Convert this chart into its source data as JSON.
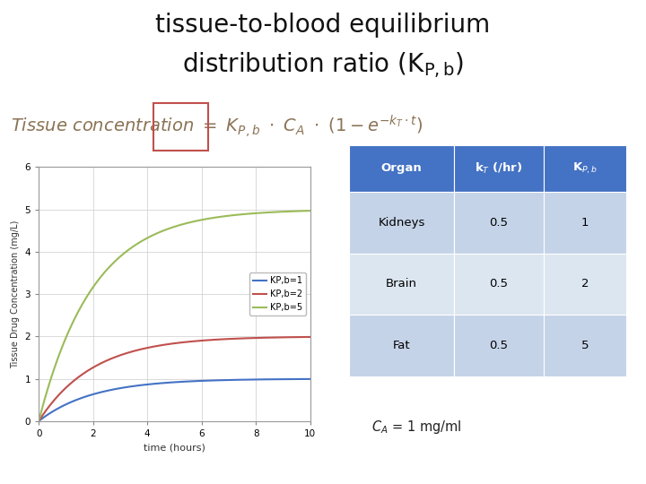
{
  "title_line1": "tissue-to-blood equilibrium",
  "title_line2": "distribution ratio (K",
  "title_fontsize": 20,
  "bg_color": "#ffffff",
  "plot": {
    "t_max": 10,
    "CA": 1,
    "kT": 0.5,
    "KPb_values": [
      1,
      2,
      5
    ],
    "line_colors": [
      "#4472C4",
      "#C0504D",
      "#9BBB59"
    ],
    "legend_labels": [
      "KP,b=1",
      "KP,b=2",
      "KP,b=5"
    ],
    "xlabel": "time (hours)",
    "ylabel": "Tissue Drug Concentration (mg/L)",
    "xlim": [
      0,
      10
    ],
    "ylim": [
      0,
      6
    ],
    "xticks": [
      0,
      2,
      4,
      6,
      8,
      10
    ],
    "yticks": [
      0,
      1,
      2,
      3,
      4,
      5,
      6
    ]
  },
  "table": {
    "header_bg": "#4472C4",
    "row_bg_1": "#C5D3E8",
    "row_bg_2": "#DCE6F1",
    "header_text_color": "#ffffff",
    "row_text_color": "#000000",
    "rows": [
      [
        "Kidneys",
        "0.5",
        "1"
      ],
      [
        "Brain",
        "0.5",
        "2"
      ],
      [
        "Fat",
        "0.5",
        "5"
      ]
    ]
  },
  "ca_value": " = 1 mg/ml",
  "formula_color": "#8B7355",
  "box_color": "#C0504D"
}
